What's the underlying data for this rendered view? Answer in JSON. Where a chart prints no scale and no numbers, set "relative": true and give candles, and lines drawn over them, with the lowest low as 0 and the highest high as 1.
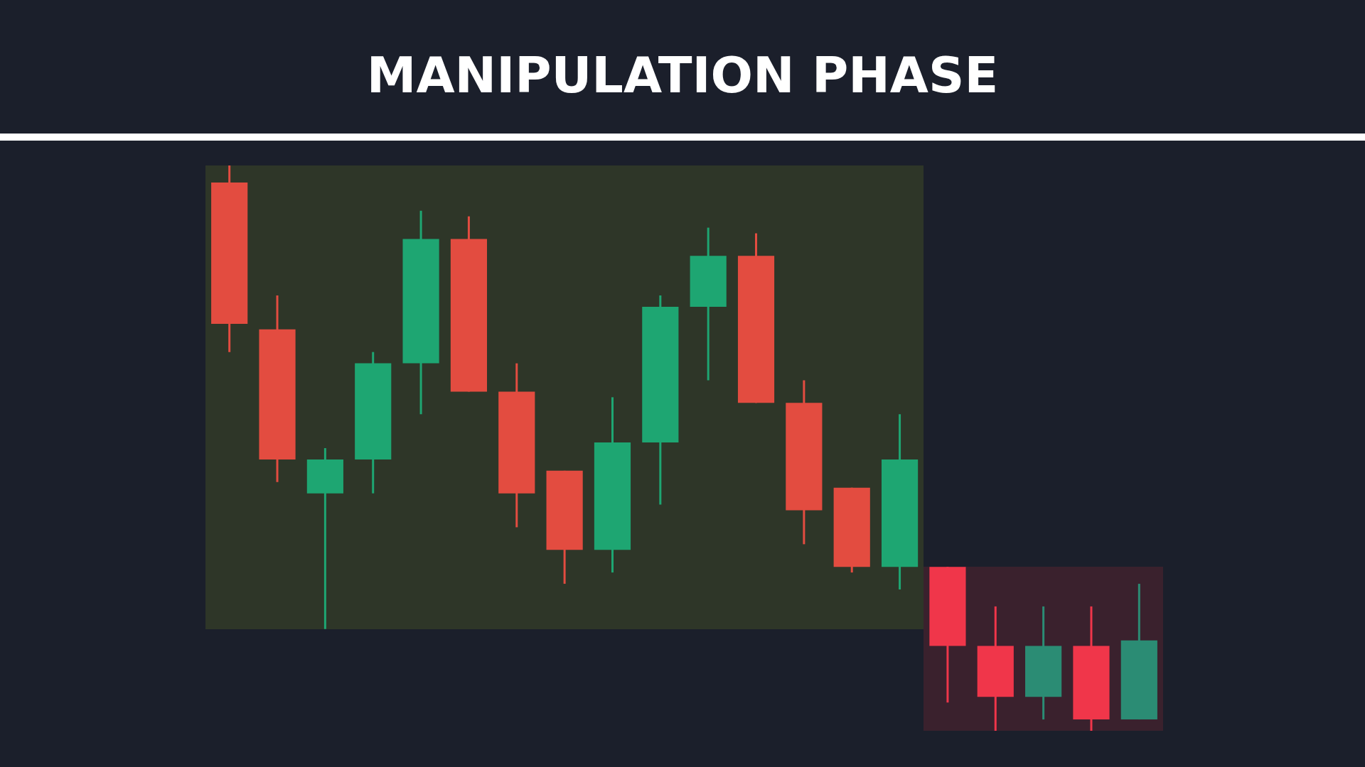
{
  "chart_data": {
    "type": "candlestick",
    "title": "MANIPULATION PHASE",
    "relative": true,
    "categories": [
      null,
      null,
      null,
      null,
      null,
      null,
      null,
      null,
      null,
      null,
      null,
      null,
      null,
      null,
      null,
      null,
      null,
      null,
      null,
      null
    ],
    "ohlc": [
      [
        0.97,
        1.0,
        0.67,
        0.72
      ],
      [
        0.71,
        0.77,
        0.44,
        0.48
      ],
      [
        0.42,
        0.5,
        0.18,
        0.48
      ],
      [
        0.48,
        0.67,
        0.42,
        0.65
      ],
      [
        0.65,
        0.92,
        0.56,
        0.87
      ],
      [
        0.87,
        0.91,
        0.6,
        0.6
      ],
      [
        0.6,
        0.65,
        0.36,
        0.42
      ],
      [
        0.46,
        0.46,
        0.26,
        0.32
      ],
      [
        0.32,
        0.59,
        0.28,
        0.51
      ],
      [
        0.51,
        0.77,
        0.4,
        0.75
      ],
      [
        0.75,
        0.89,
        0.62,
        0.84
      ],
      [
        0.84,
        0.88,
        0.58,
        0.58
      ],
      [
        0.58,
        0.62,
        0.33,
        0.39
      ],
      [
        0.43,
        0.43,
        0.28,
        0.29
      ],
      [
        0.29,
        0.56,
        0.25,
        0.48
      ],
      [
        0.29,
        0.29,
        0.05,
        0.15
      ],
      [
        0.15,
        0.22,
        0.0,
        0.06
      ],
      [
        0.06,
        0.22,
        0.02,
        0.15
      ],
      [
        0.15,
        0.22,
        0.0,
        0.02
      ],
      [
        0.02,
        0.26,
        0.02,
        0.16
      ]
    ],
    "colors": [
      "#e34c40",
      "#e34c40",
      "#1ea672",
      "#1ea672",
      "#1ea672",
      "#e34c40",
      "#e34c40",
      "#e34c40",
      "#1ea672",
      "#1ea672",
      "#1ea672",
      "#e34c40",
      "#e34c40",
      "#e34c40",
      "#1ea672",
      "#f0364a",
      "#f0364a",
      "#2b8c74",
      "#f0364a",
      "#2b8c74"
    ]
  }
}
